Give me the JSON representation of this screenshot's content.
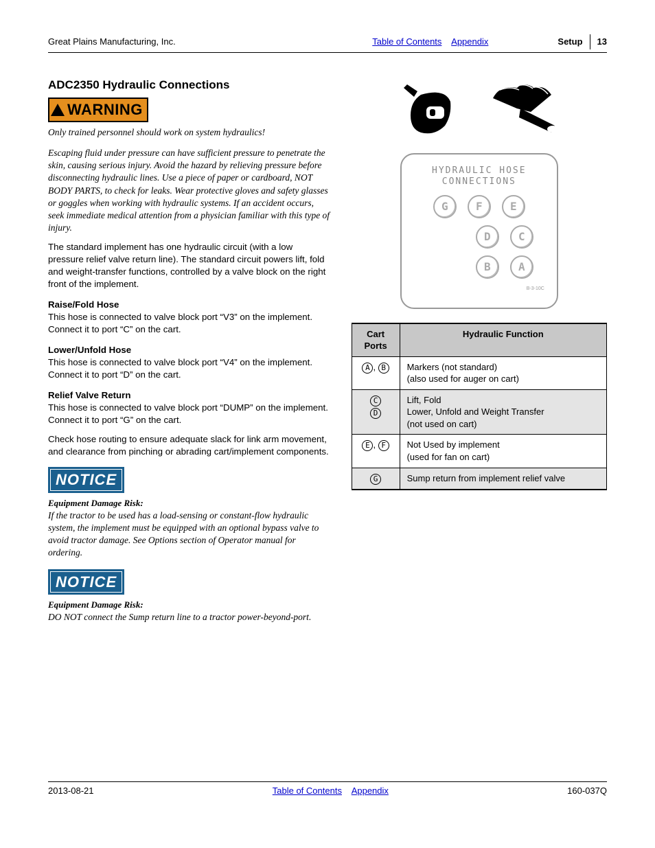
{
  "header": {
    "company": "Great Plains Manufacturing, Inc.",
    "toc": "Table of Contents",
    "appendix": "Appendix",
    "setup": "Setup",
    "page": "13"
  },
  "title": "ADC2350 Hydraulic Connections",
  "warning_label": "WARNING",
  "warning_intro": "Only trained personnel should work on system hydraulics!",
  "warning_body": "Escaping fluid under pressure can have sufficient pressure to penetrate the skin, causing serious injury. Avoid the hazard by relieving pressure before disconnecting hydraulic lines. Use a piece of paper or cardboard, NOT BODY PARTS, to check for leaks. Wear protective gloves and safety glasses or goggles when working with hydraulic systems. If an accident occurs, seek immediate medical attention from a physician familiar with this type of injury.",
  "standard_para": "The standard implement has one hydraulic circuit (with a low pressure relief valve return line). The standard circuit powers lift, fold and weight-transfer functions, controlled by a valve block on the right front of the implement.",
  "raise_h": "Raise/Fold Hose",
  "raise_p": "This hose is connected to valve block port “V3” on the implement. Connect it to port “C” on the cart.",
  "lower_h": "Lower/Unfold Hose",
  "lower_p": "This hose is connected to valve block port “V4” on the implement. Connect it to port “D” on the cart.",
  "relief_h": "Relief Valve Return",
  "relief_p": "This hose is connected to valve block port “DUMP” on the implement. Connect it to port “G” on the cart.",
  "check_p": "Check hose routing to ensure adequate slack for link arm movement, and clearance from pinching or abrading cart/implement components.",
  "notice_label": "NOTICE",
  "notice1_h": "Equipment Damage Risk:",
  "notice1_p": "If the tractor to be used has a load-sensing or constant-flow hydraulic system, the implement must be equipped with an optional bypass valve to avoid tractor damage. See Options section of Operator manual for ordering.",
  "notice2_h": "Equipment Damage Risk:",
  "notice2_p": "DO NOT connect the Sump return line to a tractor power-beyond-port.",
  "hose_panel": {
    "title1": "HYDRAULIC HOSE",
    "title2": "CONNECTIONS",
    "row1": [
      "G",
      "F",
      "E"
    ],
    "row2": [
      "D",
      "C"
    ],
    "row3": [
      "B",
      "A"
    ],
    "ref": "B-3-10C"
  },
  "table": {
    "h1": "Cart Ports",
    "h2": "Hydraulic Function",
    "rows": [
      {
        "ports": [
          "A",
          "B"
        ],
        "sep": ", ",
        "func": "Markers (not standard)\n(also used for auger on cart)",
        "shade": false
      },
      {
        "ports": [
          "C",
          "D"
        ],
        "sep": "\n",
        "func": "Lift, Fold\nLower, Unfold and Weight Transfer\n(not used on cart)",
        "shade": true
      },
      {
        "ports": [
          "E",
          "F"
        ],
        "sep": ", ",
        "func": "Not Used by implement\n(used for fan on cart)",
        "shade": false
      },
      {
        "ports": [
          "G"
        ],
        "sep": "",
        "func": "Sump return from implement relief valve",
        "shade": true
      }
    ]
  },
  "footer": {
    "date": "2013-08-21",
    "toc": "Table of Contents",
    "appendix": "Appendix",
    "doc": "160-037Q"
  },
  "colors": {
    "warning_bg": "#e58f1e",
    "notice_bg": "#1a5f8e",
    "link": "#0000cc",
    "table_header_bg": "#c8c8c8",
    "table_shade_bg": "#e4e4e4"
  }
}
